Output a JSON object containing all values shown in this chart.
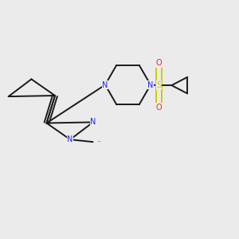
{
  "background_color": "#ebebeb",
  "bond_color": "#1a1a1a",
  "N_color": "#2020ff",
  "S_color": "#cccc00",
  "O_color": "#ff2020",
  "figsize": [
    3.0,
    3.0
  ],
  "dpi": 100,
  "xlim": [
    0.0,
    1.0
  ],
  "ylim": [
    0.0,
    1.0
  ]
}
